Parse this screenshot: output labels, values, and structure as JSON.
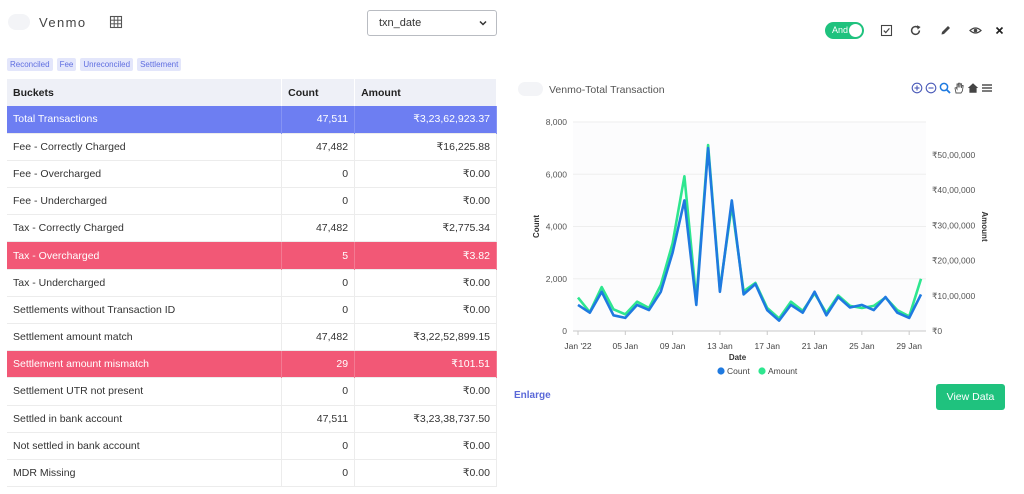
{
  "header": {
    "app_title": "Venmo",
    "date_select": {
      "value": "txn_date"
    },
    "toggle_label": "And"
  },
  "tags": [
    "Reconciled",
    "Fee",
    "Unreconciled",
    "Settlement"
  ],
  "table": {
    "columns": [
      "Buckets",
      "Count",
      "Amount"
    ],
    "rows": [
      {
        "bucket": "Total Transactions",
        "count": "47,511",
        "amount": "₹3,23,62,923.37",
        "highlight": "blue"
      },
      {
        "bucket": "Fee - Correctly Charged",
        "count": "47,482",
        "amount": "₹16,225.88",
        "highlight": ""
      },
      {
        "bucket": "Fee - Overcharged",
        "count": "0",
        "amount": "₹0.00",
        "highlight": ""
      },
      {
        "bucket": "Fee - Undercharged",
        "count": "0",
        "amount": "₹0.00",
        "highlight": ""
      },
      {
        "bucket": "Tax - Correctly Charged",
        "count": "47,482",
        "amount": "₹2,775.34",
        "highlight": ""
      },
      {
        "bucket": "Tax - Overcharged",
        "count": "5",
        "amount": "₹3.82",
        "highlight": "red"
      },
      {
        "bucket": "Tax - Undercharged",
        "count": "0",
        "amount": "₹0.00",
        "highlight": ""
      },
      {
        "bucket": "Settlements without Transaction ID",
        "count": "0",
        "amount": "₹0.00",
        "highlight": ""
      },
      {
        "bucket": "Settlement amount match",
        "count": "47,482",
        "amount": "₹3,22,52,899.15",
        "highlight": ""
      },
      {
        "bucket": "Settlement amount mismatch",
        "count": "29",
        "amount": "₹101.51",
        "highlight": "red"
      },
      {
        "bucket": "Settlement UTR not present",
        "count": "0",
        "amount": "₹0.00",
        "highlight": ""
      },
      {
        "bucket": "Settled in bank account",
        "count": "47,511",
        "amount": "₹3,23,38,737.50",
        "highlight": ""
      },
      {
        "bucket": "Not settled in bank account",
        "count": "0",
        "amount": "₹0.00",
        "highlight": ""
      },
      {
        "bucket": "MDR Missing",
        "count": "0",
        "amount": "₹0.00",
        "highlight": ""
      }
    ]
  },
  "chart_title": "Venmo-Total Transaction",
  "chart_data": {
    "type": "line",
    "title": "Venmo-Total Transaction",
    "xlabel": "Date",
    "ylabel": "Count",
    "y2label": "Amount",
    "x": [
      "2022-01-01",
      "2022-01-02",
      "2022-01-03",
      "2022-01-04",
      "2022-01-05",
      "2022-01-06",
      "2022-01-07",
      "2022-01-08",
      "2022-01-09",
      "2022-01-10",
      "2022-01-11",
      "2022-01-12",
      "2022-01-13",
      "2022-01-14",
      "2022-01-15",
      "2022-01-16",
      "2022-01-17",
      "2022-01-18",
      "2022-01-19",
      "2022-01-20",
      "2022-01-21",
      "2022-01-22",
      "2022-01-23",
      "2022-01-24",
      "2022-01-25",
      "2022-01-26",
      "2022-01-27",
      "2022-01-28",
      "2022-01-29",
      "2022-01-30"
    ],
    "series": [
      {
        "name": "Count",
        "axis": "left",
        "color": "#1f7ae0",
        "values": [
          1000,
          700,
          1500,
          600,
          500,
          1000,
          800,
          1500,
          3000,
          5000,
          1000,
          7000,
          1500,
          5000,
          1400,
          1800,
          800,
          400,
          1000,
          700,
          1500,
          600,
          1300,
          900,
          1000,
          800,
          1300,
          700,
          500,
          1400
        ]
      },
      {
        "name": "Amount",
        "axis": "right",
        "color": "#2ee68f",
        "values": [
          800000,
          450000,
          1050000,
          520000,
          400000,
          700000,
          550000,
          1100000,
          2100000,
          3700000,
          750000,
          4450000,
          1000000,
          3000000,
          950000,
          1150000,
          550000,
          300000,
          700000,
          480000,
          900000,
          430000,
          850000,
          600000,
          550000,
          600000,
          800000,
          500000,
          350000,
          1250000
        ]
      }
    ],
    "x_tick_labels": [
      "Jan '22",
      "05 Jan",
      "09 Jan",
      "13 Jan",
      "17 Jan",
      "21 Jan",
      "25 Jan",
      "29 Jan"
    ],
    "y_ticks": [
      "0",
      "2,000",
      "4,000",
      "6,000",
      "8,000"
    ],
    "y_lim": [
      0,
      8000
    ],
    "y2_ticks": [
      "₹0",
      "₹10,00,000",
      "₹20,00,000",
      "₹30,00,000",
      "₹40,00,000",
      "₹50,00,000"
    ],
    "y2_lim": [
      0,
      5000000
    ],
    "legend": [
      "Count",
      "Amount"
    ],
    "legend_position": "bottom",
    "grid": true
  },
  "actions": {
    "enlarge": "Enlarge",
    "view_data": "View Data"
  },
  "colors": {
    "primary_green": "#1fc27e",
    "row_blue": "#6d7ef2",
    "row_red": "#f25876",
    "count_line": "#1f7ae0",
    "amount_line": "#2ee68f"
  }
}
